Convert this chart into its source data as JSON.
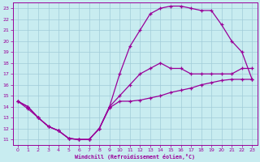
{
  "bg_color": "#c8ecf0",
  "grid_color": "#a0ccd8",
  "line_color": "#990099",
  "xlabel": "Windchill (Refroidissement éolien,°C)",
  "xlim": [
    -0.5,
    23.5
  ],
  "ylim": [
    10.5,
    23.5
  ],
  "xticks": [
    0,
    1,
    2,
    3,
    4,
    5,
    6,
    7,
    8,
    9,
    10,
    11,
    12,
    13,
    14,
    15,
    16,
    17,
    18,
    19,
    20,
    21,
    22,
    23
  ],
  "yticks": [
    11,
    12,
    13,
    14,
    15,
    16,
    17,
    18,
    19,
    20,
    21,
    22,
    23
  ],
  "curve_upper_x": [
    0,
    1,
    2,
    3,
    4,
    5,
    6,
    7,
    8,
    9,
    10,
    11,
    12,
    13,
    14,
    15,
    16,
    17,
    18,
    19,
    20,
    21,
    22,
    23
  ],
  "curve_upper_y": [
    14.5,
    14.0,
    13.0,
    12.2,
    11.8,
    11.1,
    11.0,
    11.0,
    12.0,
    14.0,
    17.0,
    19.5,
    21.0,
    22.5,
    23.0,
    23.2,
    23.2,
    23.0,
    22.8,
    22.8,
    21.5,
    20.0,
    19.0,
    16.5
  ],
  "curve_mid_x": [
    0,
    1,
    2,
    3,
    4,
    5,
    6,
    7,
    8,
    9,
    10,
    11,
    12,
    13,
    14,
    15,
    16,
    17,
    18,
    19,
    20,
    21,
    22,
    23
  ],
  "curve_mid_y": [
    14.5,
    14.0,
    13.0,
    12.2,
    11.8,
    11.1,
    11.0,
    11.0,
    12.0,
    14.0,
    15.0,
    16.0,
    17.0,
    17.5,
    18.0,
    17.5,
    17.5,
    17.0,
    17.0,
    17.0,
    17.0,
    17.0,
    17.5,
    17.5
  ],
  "curve_low_x": [
    0,
    1,
    2,
    3,
    4,
    5,
    6,
    7,
    8,
    9,
    10,
    11,
    12,
    13,
    14,
    15,
    16,
    17,
    18,
    19,
    20,
    21,
    22,
    23
  ],
  "curve_low_y": [
    14.5,
    13.8,
    13.0,
    12.2,
    11.8,
    11.1,
    11.0,
    11.0,
    12.0,
    13.9,
    14.5,
    14.5,
    14.6,
    14.8,
    15.0,
    15.3,
    15.5,
    15.7,
    16.0,
    16.2,
    16.4,
    16.5,
    16.5,
    16.5
  ]
}
